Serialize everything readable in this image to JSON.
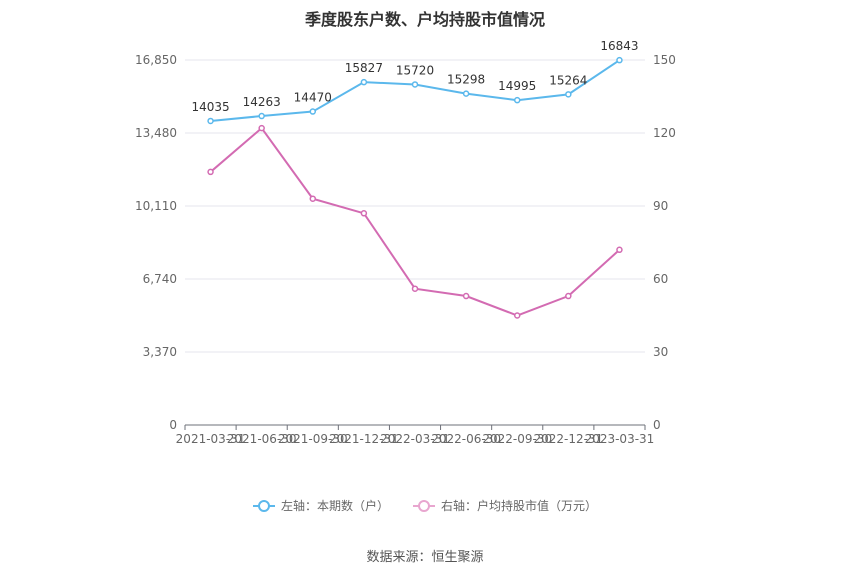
{
  "chart_data": {
    "type": "line",
    "title": "季度股东户数、户均持股市值情况",
    "categories": [
      "2021-03-31",
      "2021-06-30",
      "2021-09-30",
      "2021-12-31",
      "2022-03-31",
      "2022-06-30",
      "2022-09-30",
      "2022-12-31",
      "2023-03-31"
    ],
    "series": [
      {
        "name": "左轴：本期数（户）",
        "axis": "left",
        "color": "#5bb8ec",
        "values": [
          14035,
          14263,
          14470,
          15827,
          15720,
          15298,
          14995,
          15264,
          16843
        ],
        "data_labels": [
          "14035",
          "14263",
          "14470",
          "15827",
          "15720",
          "15298",
          "14995",
          "15264",
          "16843"
        ]
      },
      {
        "name": "右轴：户均持股市值（万元）",
        "axis": "right",
        "color": "#d36bb2",
        "values": [
          104,
          122,
          93,
          87,
          56,
          53,
          45,
          53,
          72
        ]
      }
    ],
    "left_axis": {
      "ylim": [
        0,
        16850
      ],
      "ticks": [
        0,
        3370,
        6740,
        10110,
        13480,
        16850
      ],
      "tick_labels": [
        "0",
        "3,370",
        "6,740",
        "10,110",
        "13,480",
        "16,850"
      ]
    },
    "right_axis": {
      "ylim": [
        0,
        150
      ],
      "ticks": [
        0,
        30,
        60,
        90,
        120,
        150
      ],
      "tick_labels": [
        "0",
        "30",
        "60",
        "90",
        "120",
        "150"
      ]
    },
    "grid": true,
    "legend_position": "bottom"
  },
  "source_text": "数据来源：恒生聚源"
}
